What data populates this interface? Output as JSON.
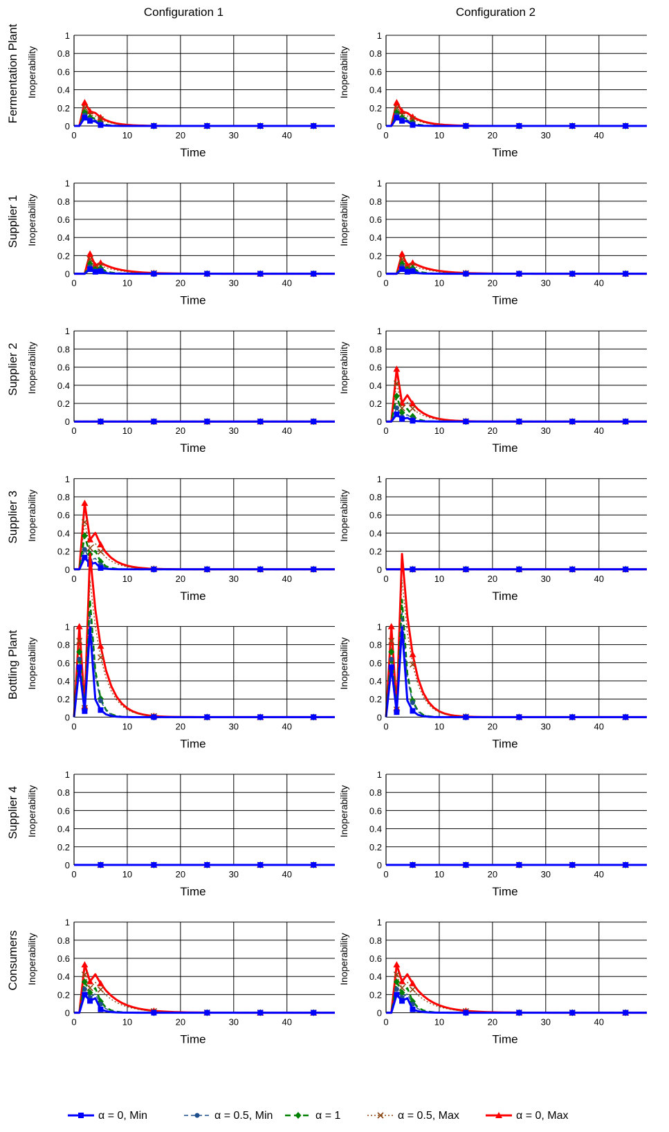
{
  "figure": {
    "column_titles": [
      "Configuration 1",
      "Configuration 2"
    ],
    "row_titles": [
      "Fermentation Plant",
      "Supplier 1",
      "Supplier 2",
      "Supplier 3",
      "Bottling Plant",
      "Supplier 4",
      "Consumers"
    ]
  },
  "colors": {
    "a0_min": "#0000ff",
    "a05_min": "#1f4e8c",
    "a1": "#008000",
    "a05_max": "#8b4513",
    "a0_max": "#ff0000"
  },
  "chart_data": {
    "type": "line",
    "xlabel": "Time",
    "ylabel": "Inoperability",
    "xlim": [
      0,
      49
    ],
    "ylim": [
      0,
      1
    ],
    "xticks": [
      0,
      10,
      20,
      30,
      40
    ],
    "yticks": [
      0,
      0.2,
      0.4,
      0.6,
      0.8,
      1
    ],
    "grid": true,
    "legend_position": "bottom",
    "x": [
      0,
      1,
      2,
      3,
      4,
      5,
      6,
      7,
      8,
      9,
      10,
      11,
      12,
      13,
      14,
      15,
      16,
      17,
      18,
      19,
      20,
      21,
      22,
      23,
      24,
      25,
      26,
      27,
      28,
      29,
      30,
      31,
      32,
      33,
      34,
      35,
      36,
      37,
      38,
      39,
      40,
      41,
      42,
      43,
      44,
      45,
      46,
      47,
      48,
      49
    ],
    "marker_x": [
      5,
      15,
      25,
      35,
      45
    ],
    "series_names": [
      "α = 0, Min",
      "α = 0.5, Min",
      "α = 1",
      "α = 0.5, Max",
      "α = 0, Max"
    ],
    "panels": [
      {
        "row": "Fermentation Plant",
        "column": "Configuration 1",
        "kind": "pulse",
        "onset": 1,
        "peaks": [
          0.09,
          0.12,
          0.15,
          0.2,
          0.26
        ],
        "second": 0.62,
        "third": 0.55,
        "decay": 0.66
      },
      {
        "row": "Fermentation Plant",
        "column": "Configuration 2",
        "kind": "pulse",
        "onset": 1,
        "peaks": [
          0.09,
          0.12,
          0.15,
          0.2,
          0.26
        ],
        "second": 0.62,
        "third": 0.55,
        "decay": 0.7
      },
      {
        "row": "Supplier 1",
        "column": "Configuration 1",
        "kind": "pulse",
        "onset": 2,
        "peaks": [
          0.05,
          0.08,
          0.11,
          0.16,
          0.22
        ],
        "second": 0.42,
        "third": 0.55,
        "decay": 0.76
      },
      {
        "row": "Supplier 1",
        "column": "Configuration 2",
        "kind": "pulse",
        "onset": 2,
        "peaks": [
          0.05,
          0.08,
          0.11,
          0.16,
          0.22
        ],
        "second": 0.42,
        "third": 0.55,
        "decay": 0.76
      },
      {
        "row": "Supplier 2",
        "column": "Configuration 1",
        "kind": "zero"
      },
      {
        "row": "Supplier 2",
        "column": "Configuration 2",
        "kind": "pulse",
        "onset": 1,
        "peaks": [
          0.08,
          0.15,
          0.28,
          0.42,
          0.58
        ],
        "second": 0.35,
        "third": 0.5,
        "decay": 0.68
      },
      {
        "row": "Supplier 3",
        "column": "Configuration 1",
        "kind": "pulse",
        "onset": 1,
        "peaks": [
          0.13,
          0.22,
          0.37,
          0.52,
          0.73
        ],
        "second": 0.45,
        "third": 0.55,
        "decay": 0.68
      },
      {
        "row": "Supplier 3",
        "column": "Configuration 2",
        "kind": "zero"
      },
      {
        "row": "Bottling Plant",
        "column": "Configuration 1",
        "kind": "pulse",
        "onset": 0,
        "peaks": [
          0.55,
          0.64,
          0.72,
          0.84,
          1.0
        ],
        "second": 0.12,
        "third": 1.8,
        "decay": 0.66
      },
      {
        "row": "Bottling Plant",
        "column": "Configuration 2",
        "kind": "pulse",
        "onset": 0,
        "peaks": [
          0.55,
          0.64,
          0.72,
          0.84,
          1.0
        ],
        "second": 0.1,
        "third": 1.8,
        "decay": 0.62
      },
      {
        "row": "Supplier 4",
        "column": "Configuration 1",
        "kind": "zero"
      },
      {
        "row": "Supplier 4",
        "column": "Configuration 2",
        "kind": "zero"
      },
      {
        "row": "Consumers",
        "column": "Configuration 1",
        "kind": "pulse",
        "onset": 1,
        "peaks": [
          0.2,
          0.26,
          0.34,
          0.42,
          0.53
        ],
        "second": 0.65,
        "third": 0.8,
        "decay": 0.76
      },
      {
        "row": "Consumers",
        "column": "Configuration 2",
        "kind": "pulse",
        "onset": 1,
        "peaks": [
          0.2,
          0.26,
          0.34,
          0.42,
          0.53
        ],
        "second": 0.65,
        "third": 0.8,
        "decay": 0.76
      }
    ]
  }
}
